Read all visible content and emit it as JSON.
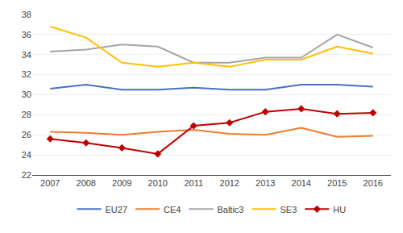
{
  "chart_data": {
    "type": "line",
    "x": [
      2007,
      2008,
      2009,
      2010,
      2011,
      2012,
      2013,
      2014,
      2015,
      2016
    ],
    "series": [
      {
        "name": "EU27",
        "color": "#4472C4",
        "values": [
          30.6,
          31.0,
          30.5,
          30.5,
          30.7,
          30.5,
          30.5,
          31.0,
          31.0,
          30.8
        ]
      },
      {
        "name": "CE4",
        "color": "#ED7D31",
        "values": [
          26.3,
          26.2,
          26.0,
          26.3,
          26.5,
          26.1,
          26.0,
          26.7,
          25.8,
          25.9
        ]
      },
      {
        "name": "Baltic3",
        "color": "#A5A5A5",
        "values": [
          34.3,
          34.5,
          35.0,
          34.8,
          33.2,
          33.2,
          33.7,
          33.7,
          36.0,
          34.7
        ]
      },
      {
        "name": "SE3",
        "color": "#FFC000",
        "values": [
          36.8,
          35.7,
          33.2,
          32.8,
          33.2,
          32.8,
          33.5,
          33.5,
          34.8,
          34.1
        ]
      },
      {
        "name": "HU",
        "color": "#C00000",
        "marker": "diamond",
        "values": [
          25.6,
          25.2,
          24.7,
          24.1,
          26.9,
          27.2,
          28.3,
          28.6,
          28.1,
          28.2
        ]
      }
    ],
    "xlim": [
      2006.5,
      2016.5
    ],
    "xticks": [
      2007,
      2008,
      2009,
      2010,
      2011,
      2012,
      2013,
      2014,
      2015,
      2016
    ],
    "ylim": [
      22,
      38
    ],
    "yticks": [
      22,
      24,
      26,
      28,
      30,
      32,
      34,
      36,
      38
    ],
    "grid": true,
    "legend": "bottom"
  }
}
